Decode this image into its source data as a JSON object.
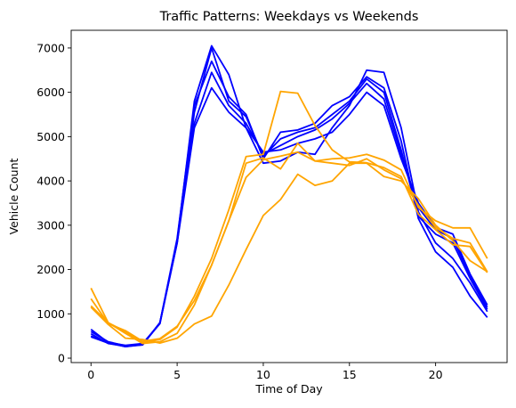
{
  "chart_data": {
    "type": "line",
    "title": "Traffic Patterns: Weekdays vs Weekends",
    "xlabel": "Time of Day",
    "ylabel": "Vehicle Count",
    "xlim": [
      -1.15,
      24.15
    ],
    "ylim": [
      -100,
      7400
    ],
    "xticks": [
      0,
      5,
      10,
      15,
      20
    ],
    "yticks": [
      0,
      1000,
      2000,
      3000,
      4000,
      5000,
      6000,
      7000
    ],
    "grid": false,
    "x": [
      0,
      1,
      2,
      3,
      4,
      5,
      6,
      7,
      8,
      9,
      10,
      11,
      12,
      13,
      14,
      15,
      16,
      17,
      18,
      19,
      20,
      21,
      22,
      23
    ],
    "colors": {
      "weekday": "#0000ff",
      "weekend": "#ffa500"
    },
    "series": [
      {
        "group": "weekday",
        "values": [
          500,
          350,
          290,
          330,
          780,
          2650,
          5800,
          7050,
          6400,
          5200,
          4400,
          4450,
          4650,
          4600,
          5200,
          5700,
          6500,
          6450,
          5200,
          3300,
          2600,
          2250,
          1700,
          1050
        ]
      },
      {
        "group": "weekday",
        "values": [
          650,
          350,
          260,
          300,
          800,
          2700,
          5700,
          6700,
          5900,
          5500,
          4500,
          5100,
          5150,
          5300,
          5700,
          5900,
          6350,
          6100,
          4900,
          3150,
          2400,
          2050,
          1400,
          920
        ]
      },
      {
        "group": "weekday",
        "values": [
          550,
          330,
          270,
          300,
          800,
          2600,
          5550,
          7000,
          5800,
          5450,
          4550,
          4950,
          5100,
          5200,
          5500,
          5800,
          6300,
          6000,
          4700,
          3200,
          2800,
          2600,
          1800,
          1100
        ]
      },
      {
        "group": "weekday",
        "values": [
          600,
          370,
          280,
          320,
          790,
          2650,
          5300,
          6450,
          5700,
          5300,
          4600,
          4800,
          5000,
          5150,
          5400,
          5750,
          6200,
          5850,
          4600,
          3400,
          2900,
          2700,
          1850,
          1150
        ]
      },
      {
        "group": "weekday",
        "values": [
          480,
          340,
          260,
          310,
          780,
          2600,
          5200,
          6100,
          5550,
          5200,
          4650,
          4700,
          4850,
          4950,
          5100,
          5500,
          6000,
          5700,
          4500,
          3500,
          2950,
          2800,
          1900,
          1200
        ]
      },
      {
        "group": "weekend",
        "values": [
          1580,
          800,
          600,
          350,
          420,
          700,
          1400,
          2250,
          3350,
          4550,
          4600,
          6020,
          5980,
          5250,
          4700,
          4430,
          4410,
          4300,
          4100,
          3250,
          2900,
          2560,
          2520,
          1930
        ]
      },
      {
        "group": "weekend",
        "values": [
          1340,
          780,
          620,
          380,
          440,
          720,
          1300,
          2100,
          3100,
          4400,
          4520,
          4270,
          4850,
          4450,
          4500,
          4520,
          4600,
          4470,
          4250,
          3400,
          3100,
          2940,
          2940,
          2250
        ]
      },
      {
        "group": "weekend",
        "values": [
          1180,
          800,
          560,
          330,
          370,
          560,
          1200,
          2100,
          3100,
          4080,
          4480,
          4560,
          4650,
          4450,
          4400,
          4350,
          4500,
          4250,
          4050,
          3450,
          2950,
          2700,
          2600,
          1950
        ]
      },
      {
        "group": "weekend",
        "values": [
          1150,
          760,
          450,
          420,
          340,
          450,
          770,
          950,
          1650,
          2450,
          3220,
          3580,
          4150,
          3900,
          4000,
          4400,
          4400,
          4100,
          4000,
          3600,
          3000,
          2650,
          2200,
          1950
        ]
      }
    ]
  }
}
